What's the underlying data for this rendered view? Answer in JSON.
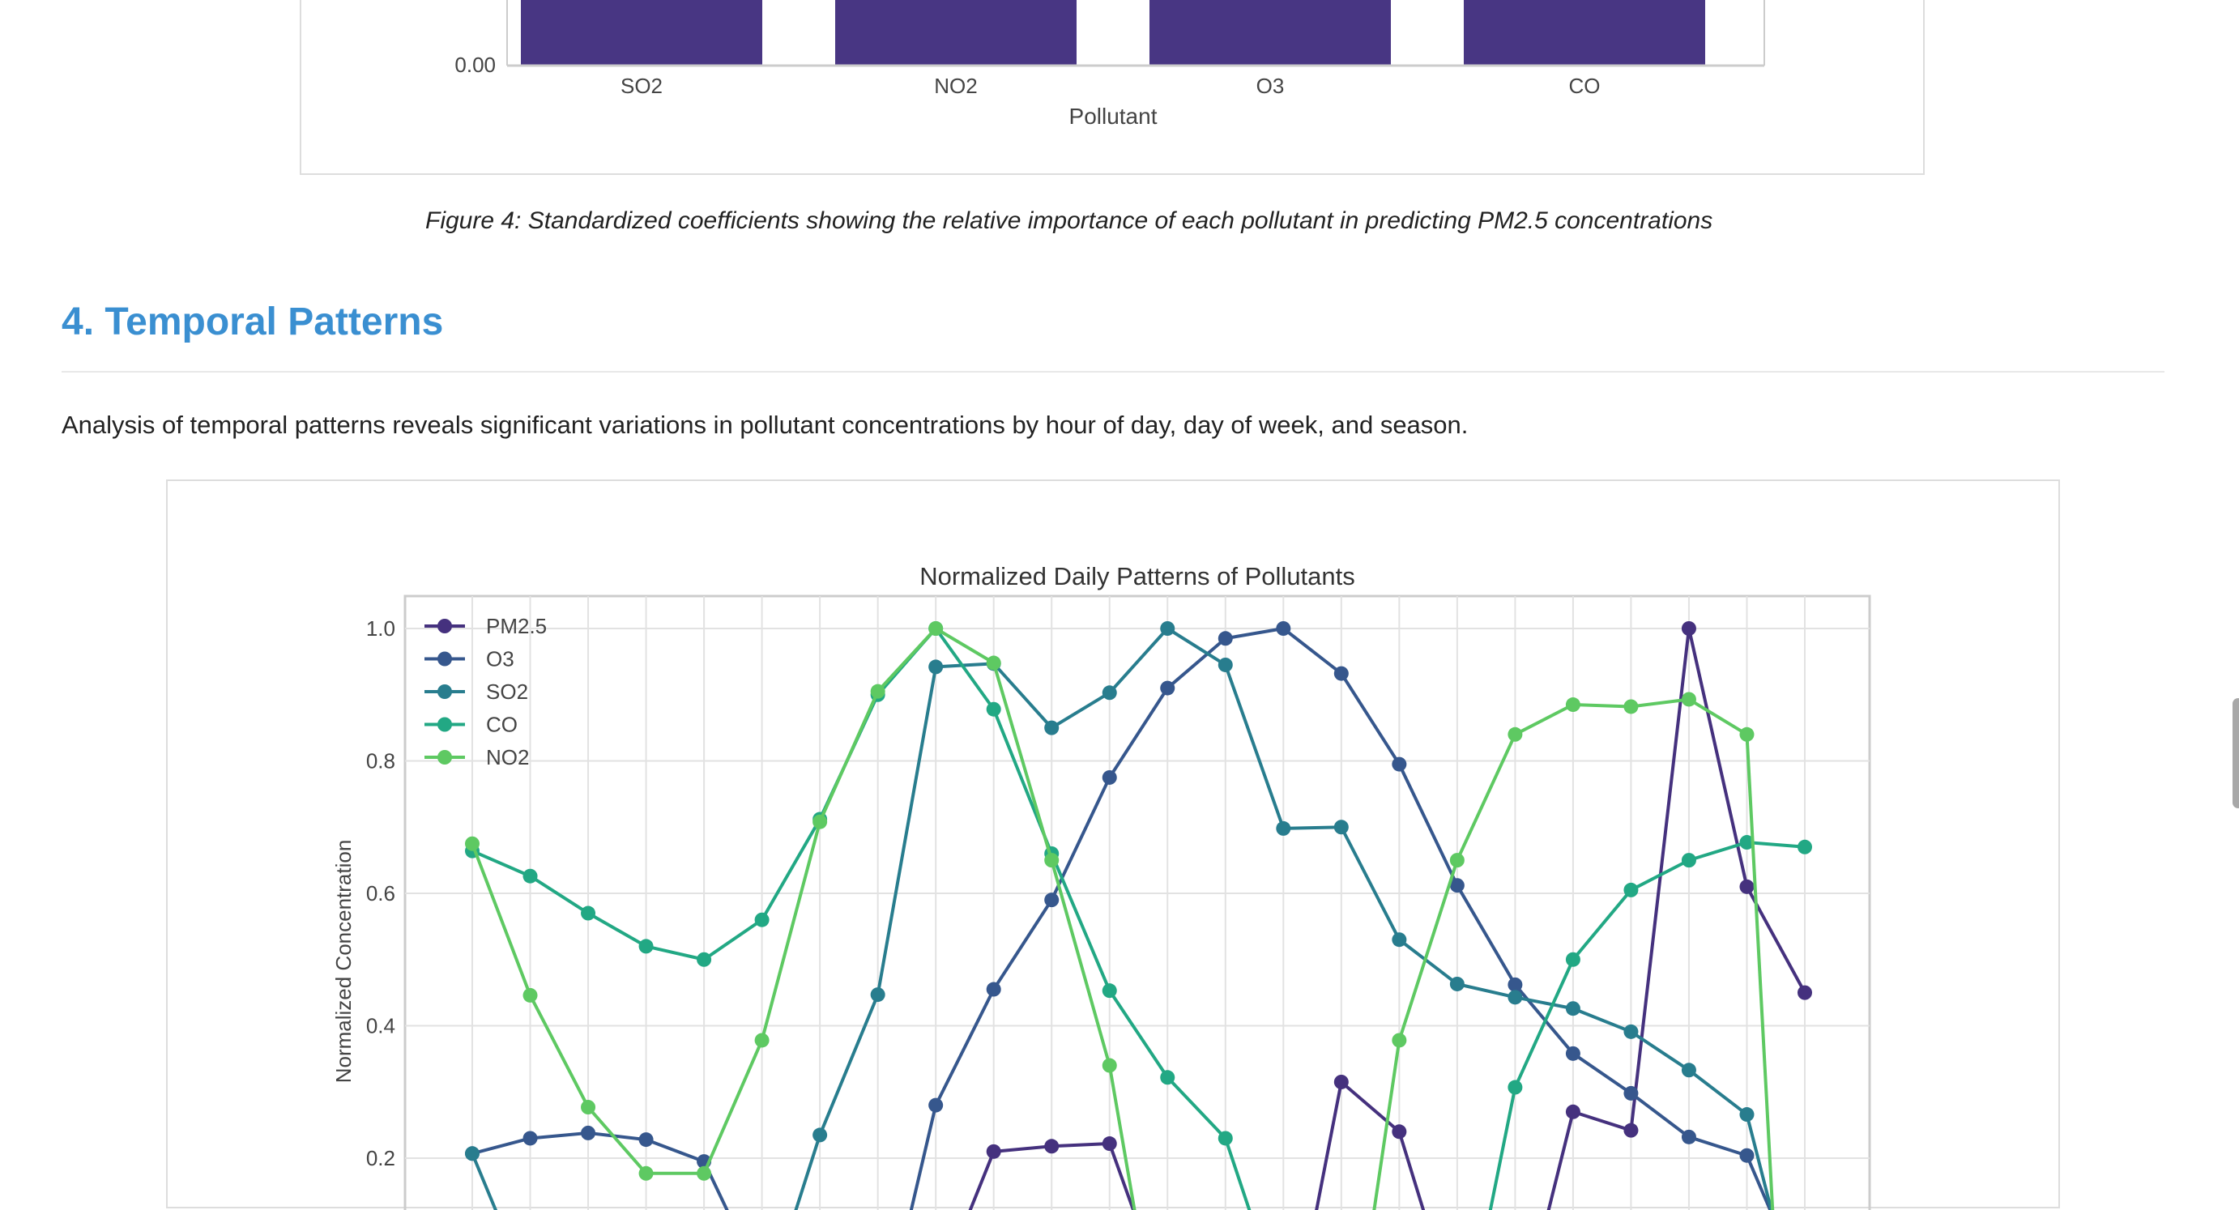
{
  "coef_figure": {
    "chart_data": {
      "type": "bar",
      "categories": [
        "SO2",
        "NO2",
        "O3",
        "CO"
      ],
      "xlabel": "Pollutant",
      "y_tick_visible": "0.00",
      "bar_color": "#483683"
    },
    "caption": "Figure 4: Standardized coefficients showing the relative importance of each pollutant in predicting PM2.5 concentrations"
  },
  "section": {
    "heading": "4. Temporal Patterns",
    "paragraph": "Analysis of temporal patterns reveals significant variations in pollutant concentrations by hour of day, day of week, and season."
  },
  "daily_figure": {
    "chart_data": {
      "type": "line",
      "title": "Normalized Daily Patterns of Pollutants",
      "ylabel": "Normalized Concentration",
      "x": [
        0,
        1,
        2,
        3,
        4,
        5,
        6,
        7,
        8,
        9,
        10,
        11,
        12,
        13,
        14,
        15,
        16,
        17,
        18,
        19,
        20,
        21,
        22,
        23
      ],
      "yticks": [
        "0.2",
        "0.4",
        "0.6",
        "0.8",
        "1.0"
      ],
      "legend_position": "upper-left",
      "grid": true,
      "series": [
        {
          "name": "PM2.5",
          "color": "#45317e",
          "values": [
            null,
            null,
            null,
            null,
            null,
            null,
            null,
            null,
            null,
            0.21,
            0.218,
            0.222,
            null,
            null,
            null,
            0.315,
            0.24,
            null,
            null,
            0.27,
            0.242,
            1.0,
            0.61,
            0.45
          ]
        },
        {
          "name": "O3",
          "color": "#36578d",
          "values": [
            0.207,
            0.23,
            0.238,
            0.228,
            0.195,
            null,
            null,
            null,
            0.28,
            0.455,
            0.59,
            0.775,
            0.91,
            0.985,
            1.0,
            0.932,
            0.795,
            0.612,
            0.462,
            0.358,
            0.298,
            0.232,
            0.204,
            null
          ]
        },
        {
          "name": "SO2",
          "color": "#287d8e",
          "values": [
            0.207,
            null,
            null,
            null,
            null,
            null,
            0.235,
            0.447,
            0.942,
            0.947,
            0.85,
            0.903,
            1.0,
            0.945,
            0.698,
            0.7,
            0.53,
            0.463,
            0.443,
            0.426,
            0.391,
            0.333,
            0.266,
            null
          ]
        },
        {
          "name": "CO",
          "color": "#22a884",
          "values": [
            0.664,
            0.626,
            0.57,
            0.52,
            0.5,
            0.56,
            0.712,
            0.9,
            1.0,
            0.878,
            0.66,
            0.453,
            0.322,
            0.23,
            null,
            null,
            null,
            null,
            0.307,
            0.5,
            0.605,
            0.65,
            0.677,
            0.67
          ]
        },
        {
          "name": "NO2",
          "color": "#5ec962",
          "values": [
            0.675,
            0.446,
            0.277,
            0.177,
            0.177,
            0.378,
            0.708,
            0.905,
            1.0,
            0.948,
            0.65,
            0.34,
            null,
            null,
            null,
            null,
            0.378,
            0.65,
            0.84,
            0.885,
            0.882,
            0.893,
            0.84,
            null
          ]
        }
      ]
    }
  }
}
